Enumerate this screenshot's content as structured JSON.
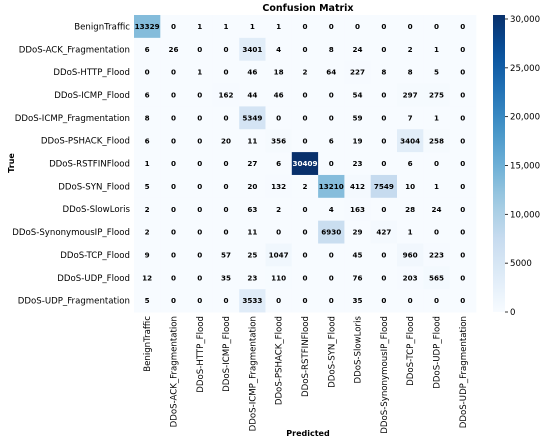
{
  "chart_data": {
    "type": "heatmap",
    "title": "Confusion Matrix",
    "xlabel": "Predicted",
    "ylabel": "True",
    "row_labels": [
      "BenignTraffic",
      "DDoS-ACK_Fragmentation",
      "DDoS-HTTP_Flood",
      "DDoS-ICMP_Flood",
      "DDoS-ICMP_Fragmentation",
      "DDoS-PSHACK_Flood",
      "DDoS-RSTFINFlood",
      "DDoS-SYN_Flood",
      "DDoS-SlowLoris",
      "DDoS-SynonymousIP_Flood",
      "DDoS-TCP_Flood",
      "DDoS-UDP_Flood",
      "DDoS-UDP_Fragmentation"
    ],
    "col_labels": [
      "BenignTraffic",
      "DDoS-ACK_Fragmentation",
      "DDoS-HTTP_Flood",
      "DDoS-ICMP_Flood",
      "DDoS-ICMP_Fragmentation",
      "DDoS-PSHACK_Flood",
      "DDoS-RSTFINFlood",
      "DDoS-SYN_Flood",
      "DDoS-SlowLoris",
      "DDoS-SynonymousIP_Flood",
      "DDoS-TCP_Flood",
      "DDoS-UDP_Flood",
      "DDoS-UDP_Fragmentation"
    ],
    "values": [
      [
        13329,
        0,
        1,
        1,
        1,
        1,
        0,
        0,
        0,
        0,
        0,
        0,
        0
      ],
      [
        6,
        26,
        0,
        0,
        3401,
        4,
        0,
        8,
        24,
        0,
        2,
        1,
        0
      ],
      [
        0,
        0,
        1,
        0,
        46,
        18,
        2,
        64,
        227,
        8,
        8,
        5,
        0
      ],
      [
        6,
        0,
        0,
        162,
        44,
        46,
        0,
        0,
        54,
        0,
        297,
        275,
        0
      ],
      [
        8,
        0,
        0,
        0,
        5349,
        0,
        0,
        0,
        59,
        0,
        7,
        1,
        0
      ],
      [
        6,
        0,
        0,
        20,
        11,
        356,
        0,
        6,
        19,
        0,
        3404,
        258,
        0
      ],
      [
        1,
        0,
        0,
        0,
        27,
        6,
        30409,
        0,
        23,
        0,
        6,
        0,
        0
      ],
      [
        5,
        0,
        0,
        0,
        20,
        132,
        2,
        13210,
        412,
        7549,
        10,
        1,
        0
      ],
      [
        2,
        0,
        0,
        0,
        63,
        2,
        0,
        4,
        163,
        0,
        28,
        24,
        0
      ],
      [
        2,
        0,
        0,
        0,
        11,
        0,
        0,
        6930,
        29,
        427,
        1,
        0,
        0
      ],
      [
        9,
        0,
        0,
        57,
        25,
        1047,
        0,
        0,
        45,
        0,
        960,
        223,
        0
      ],
      [
        12,
        0,
        0,
        35,
        23,
        110,
        0,
        0,
        76,
        0,
        203,
        565,
        0
      ],
      [
        5,
        0,
        0,
        0,
        3533,
        0,
        0,
        0,
        35,
        0,
        0,
        0,
        0
      ]
    ],
    "zlim": [
      0,
      30409
    ],
    "colorbar_ticks": [
      0,
      5000,
      10000,
      15000,
      20000,
      25000,
      30000
    ],
    "colorbar_tick_labels": [
      "0",
      "5000",
      "10,000",
      "15,000",
      "20,000",
      "25,000",
      "30,000"
    ],
    "colormap": "Blues",
    "grid": false,
    "legend": "colorbar-right"
  }
}
